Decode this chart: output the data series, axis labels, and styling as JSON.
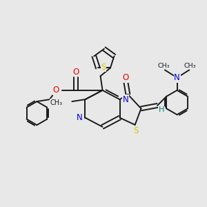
{
  "bg_color": "#e8e8e8",
  "bond_color": "#1a1a1a",
  "S_color": "#cccc00",
  "N_color": "#0000ee",
  "O_color": "#ee0000",
  "H_color": "#008080",
  "figsize": [
    3.0,
    3.0
  ],
  "dpi": 100,
  "xlim": [
    0,
    10
  ],
  "ylim": [
    0,
    10
  ]
}
